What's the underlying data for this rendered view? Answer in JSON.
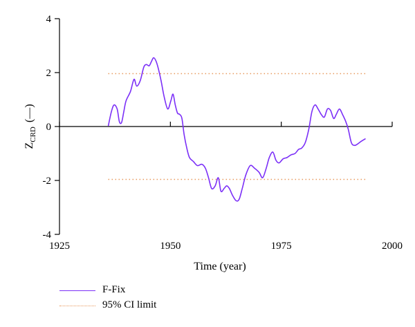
{
  "chart_data": {
    "type": "line",
    "xlabel": "Time (year)",
    "ylabel_main": "Z",
    "ylabel_sub": "CRD",
    "ylabel_unit": "(—)",
    "xlim": [
      1925,
      2000
    ],
    "ylim": [
      -4,
      4
    ],
    "xticks": [
      1925,
      1950,
      1975,
      2000
    ],
    "yticks": [
      4,
      2,
      0,
      -2,
      -4
    ],
    "colors": {
      "series": "#7b2ff7",
      "ci": "#e8975a",
      "axis": "#000000"
    },
    "series": [
      {
        "name": "F-Fix",
        "x": [
          1936,
          1936.7,
          1937.3,
          1938,
          1938.5,
          1939,
          1939.5,
          1940,
          1941,
          1941.8,
          1942.4,
          1943.2,
          1944,
          1944.6,
          1945.2,
          1945.7,
          1946.2,
          1946.7,
          1947.2,
          1947.9,
          1948.6,
          1949.4,
          1950.1,
          1950.6,
          1951.1,
          1951.6,
          1952.1,
          1952.6,
          1953.1,
          1953.7,
          1954.3,
          1955.2,
          1956.1,
          1957.1,
          1957.9,
          1958.6,
          1959.3,
          1960.1,
          1960.8,
          1961.4,
          1962.1,
          1962.7,
          1963.3,
          1964,
          1964.8,
          1965.5,
          1966.2,
          1967,
          1968,
          1969,
          1970,
          1970.8,
          1971.6,
          1972.3,
          1973.1,
          1973.8,
          1974.5,
          1975.4,
          1976.3,
          1977.2,
          1978.1,
          1978.9,
          1979.6,
          1980.4,
          1981.2,
          1981.9,
          1982.6,
          1983.3,
          1984,
          1984.7,
          1985.4,
          1986.1,
          1986.8,
          1987.4,
          1988.1,
          1988.8,
          1989.5,
          1990.1,
          1990.8,
          1991.5,
          1992.2,
          1993,
          1994
        ],
        "y": [
          0.02,
          0.55,
          0.8,
          0.65,
          0.18,
          0.15,
          0.55,
          0.95,
          1.3,
          1.75,
          1.5,
          1.7,
          2.2,
          2.3,
          2.25,
          2.4,
          2.55,
          2.45,
          2.2,
          1.7,
          1.1,
          0.65,
          0.95,
          1.2,
          0.8,
          0.5,
          0.45,
          0.3,
          -0.3,
          -0.8,
          -1.15,
          -1.3,
          -1.45,
          -1.4,
          -1.55,
          -1.9,
          -2.3,
          -2.2,
          -1.9,
          -2.4,
          -2.3,
          -2.2,
          -2.3,
          -2.55,
          -2.75,
          -2.7,
          -2.3,
          -1.8,
          -1.45,
          -1.55,
          -1.7,
          -1.9,
          -1.55,
          -1.15,
          -0.95,
          -1.25,
          -1.35,
          -1.2,
          -1.15,
          -1.05,
          -1.0,
          -0.85,
          -0.8,
          -0.6,
          -0.1,
          0.55,
          0.8,
          0.65,
          0.45,
          0.35,
          0.65,
          0.6,
          0.3,
          0.45,
          0.65,
          0.45,
          0.2,
          -0.1,
          -0.6,
          -0.7,
          -0.65,
          -0.55,
          -0.45
        ]
      },
      {
        "name": "95% CI limit",
        "upper": 1.96,
        "lower": -1.96,
        "x_range": [
          1936,
          1994
        ]
      }
    ],
    "legend_placement": "bottom-left",
    "grid": false
  }
}
